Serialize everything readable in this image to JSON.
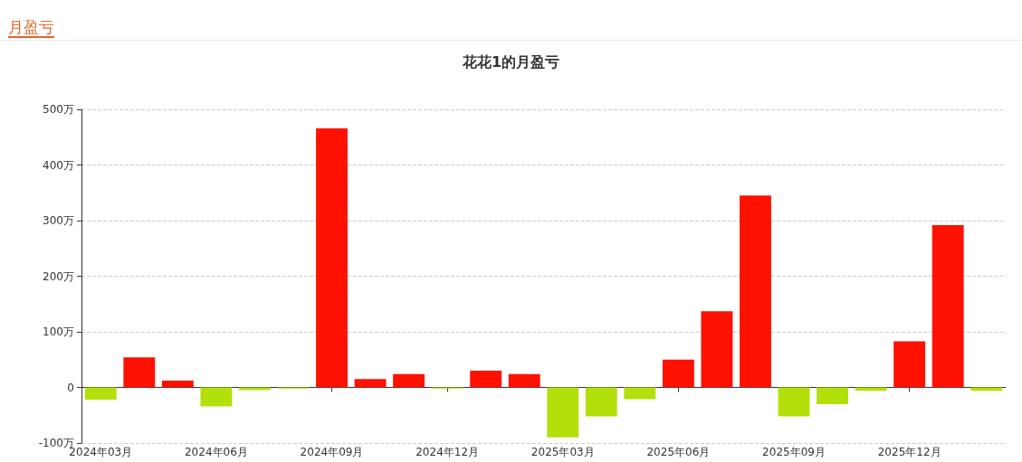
{
  "chart_data": {
    "type": "bar",
    "subtitle": "月盈亏",
    "title": "花花1的月盈亏",
    "categories": [
      "2024年03月",
      null,
      null,
      "2024年06月",
      null,
      null,
      "2024年09月",
      null,
      null,
      "2024年12月",
      null,
      null,
      "2025年03月",
      null,
      null,
      "2025年06月",
      null,
      null,
      "2025年09月",
      null,
      null,
      "2025年12月",
      null,
      null
    ],
    "values": [
      -22,
      54,
      12,
      -34,
      -5,
      -2,
      466,
      15,
      24,
      -2,
      30,
      24,
      -90,
      -52,
      -21,
      50,
      137,
      345,
      -52,
      -30,
      -6,
      83,
      292,
      -6
    ],
    "colors": [
      "#b3e00b",
      "#ff1100",
      "#ff1100",
      "#b3e00b",
      "#b3e00b",
      "#b3e00b",
      "#ff1100",
      "#ff1100",
      "#ff1100",
      "#b3e00b",
      "#ff1100",
      "#ff1100",
      "#b3e00b",
      "#b3e00b",
      "#b3e00b",
      "#ff1100",
      "#ff1100",
      "#ff1100",
      "#b3e00b",
      "#b3e00b",
      "#b3e00b",
      "#ff1100",
      "#ff1100",
      "#b3e00b"
    ],
    "ylim": [
      -100,
      500
    ],
    "yticks": [
      {
        "value": -100,
        "label": "-100万"
      },
      {
        "value": 0,
        "label": "0"
      },
      {
        "value": 100,
        "label": "100万"
      },
      {
        "value": 200,
        "label": "200万"
      },
      {
        "value": 300,
        "label": "300万"
      },
      {
        "value": 400,
        "label": "400万"
      },
      {
        "value": 500,
        "label": "500万"
      }
    ],
    "grid": "y"
  }
}
